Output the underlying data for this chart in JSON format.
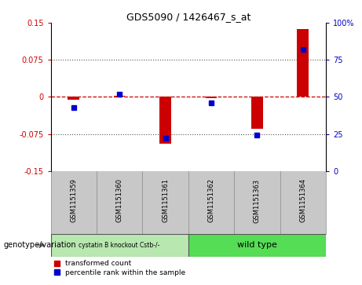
{
  "title": "GDS5090 / 1426467_s_at",
  "samples": [
    "GSM1151359",
    "GSM1151360",
    "GSM1151361",
    "GSM1151362",
    "GSM1151363",
    "GSM1151364"
  ],
  "transformed_count": [
    -0.005,
    0.002,
    -0.095,
    -0.003,
    -0.065,
    0.138
  ],
  "percentile_rank_raw": [
    43,
    52,
    22,
    46,
    24,
    82
  ],
  "ylim_left": [
    -0.15,
    0.15
  ],
  "ylim_right": [
    0,
    100
  ],
  "yticks_left": [
    -0.15,
    -0.075,
    0,
    0.075,
    0.15
  ],
  "yticks_right": [
    0,
    25,
    50,
    75,
    100
  ],
  "ytick_labels_left": [
    "-0.15",
    "-0.075",
    "0",
    "0.075",
    "0.15"
  ],
  "ytick_labels_right": [
    "0",
    "25",
    "50",
    "75",
    "100%"
  ],
  "left_color": "#cc0000",
  "right_color": "#0000cc",
  "bar_color_red": "#cc0000",
  "bar_color_blue": "#0000cc",
  "hline_color": "#cc0000",
  "dotted_color": "#555555",
  "bg_plot": "#ffffff",
  "bg_xtick": "#c8c8c8",
  "group1_color": "#b8e8b0",
  "group2_color": "#55dd55",
  "legend_red_label": "transformed count",
  "legend_blue_label": "percentile rank within the sample",
  "genotype_label": "genotype/variation",
  "group1_label": "cystatin B knockout Cstb-/-",
  "group2_label": "wild type"
}
